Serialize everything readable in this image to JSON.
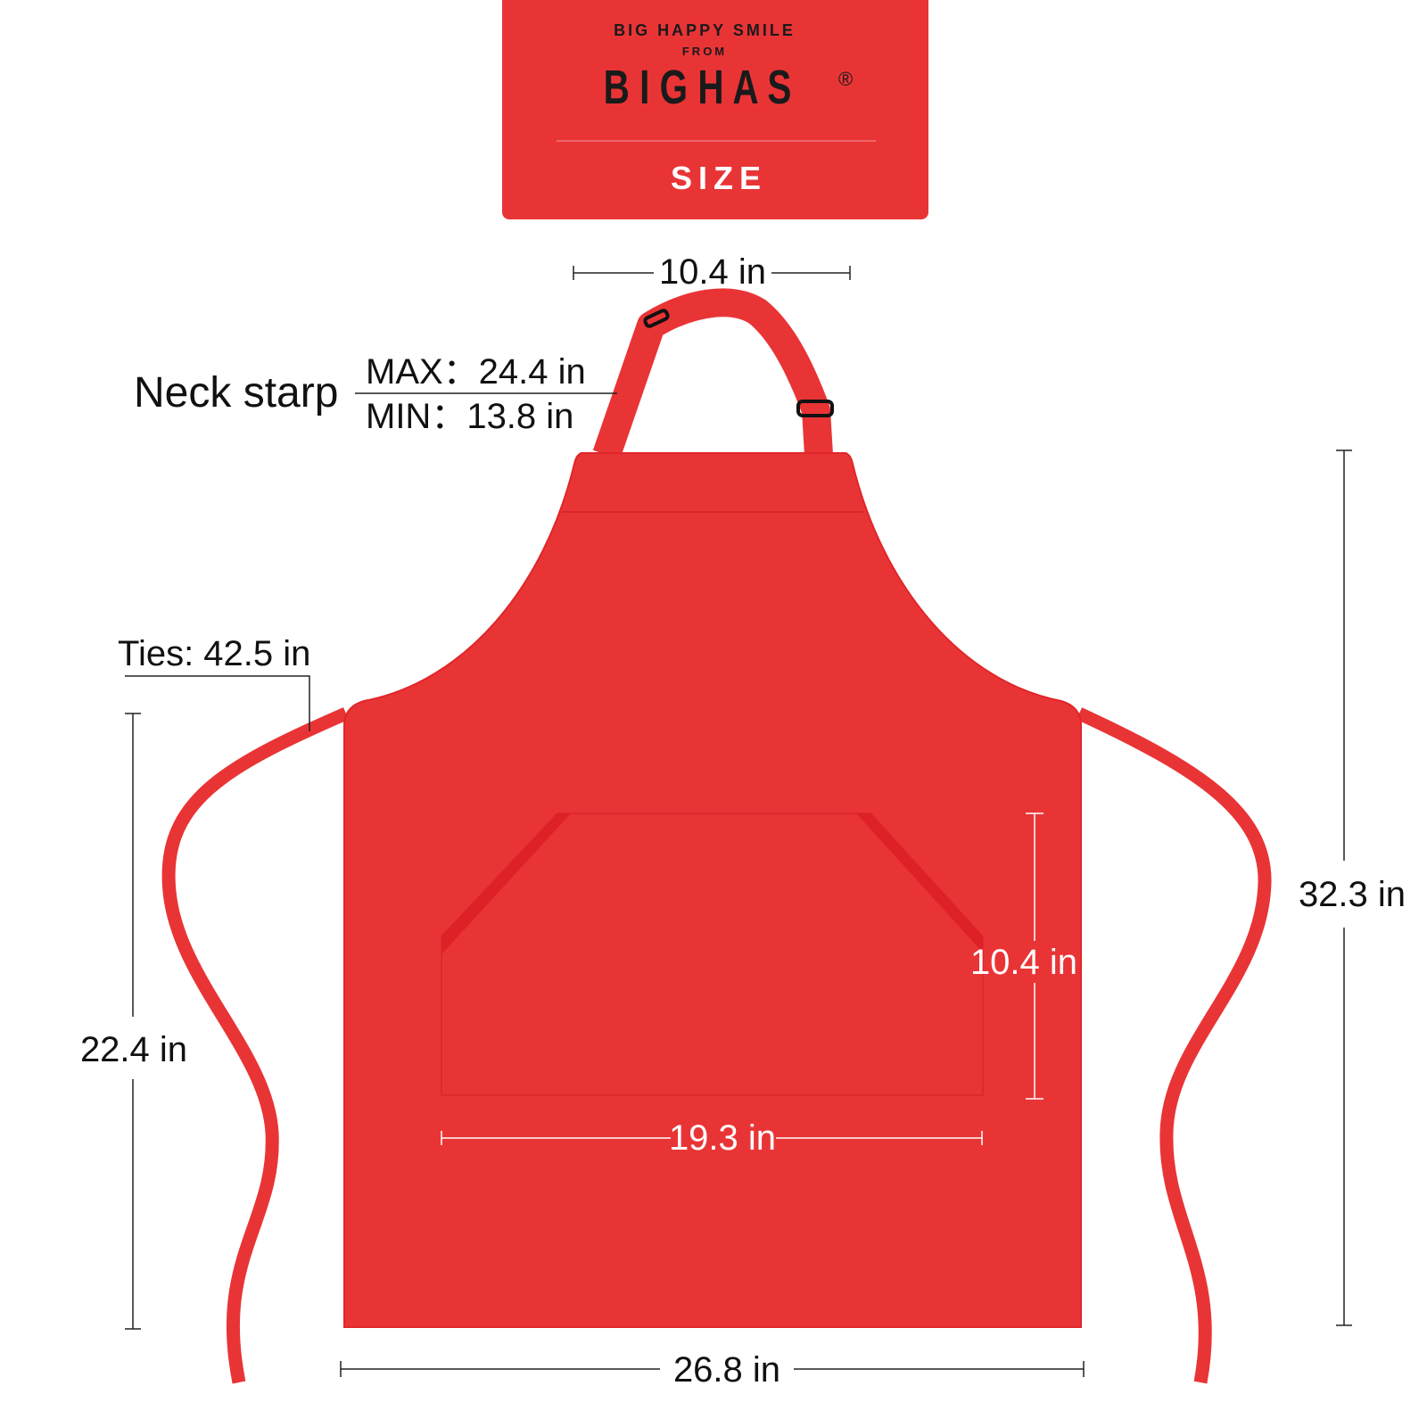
{
  "header": {
    "tagline": "BIG HAPPY SMILE",
    "from": "FROM",
    "brand": "B I G H A S",
    "registered": "®",
    "title": "SIZE"
  },
  "colors": {
    "apron": "#e93436",
    "apron_dark": "#e0262a",
    "banner": "#e93436",
    "text": "#111111"
  },
  "dimensions": {
    "neck_width": "10.4 in",
    "neck_strap_label": "Neck starp",
    "neck_strap_max": "MAX：24.4 in",
    "neck_strap_min": "MIN：13.8 in",
    "ties": "Ties: 42.5 in",
    "lower_height": "22.4 in",
    "total_height": "32.3 in",
    "pocket_height": "10.4 in",
    "pocket_width": "19.3 in",
    "bottom_width": "26.8 in"
  }
}
